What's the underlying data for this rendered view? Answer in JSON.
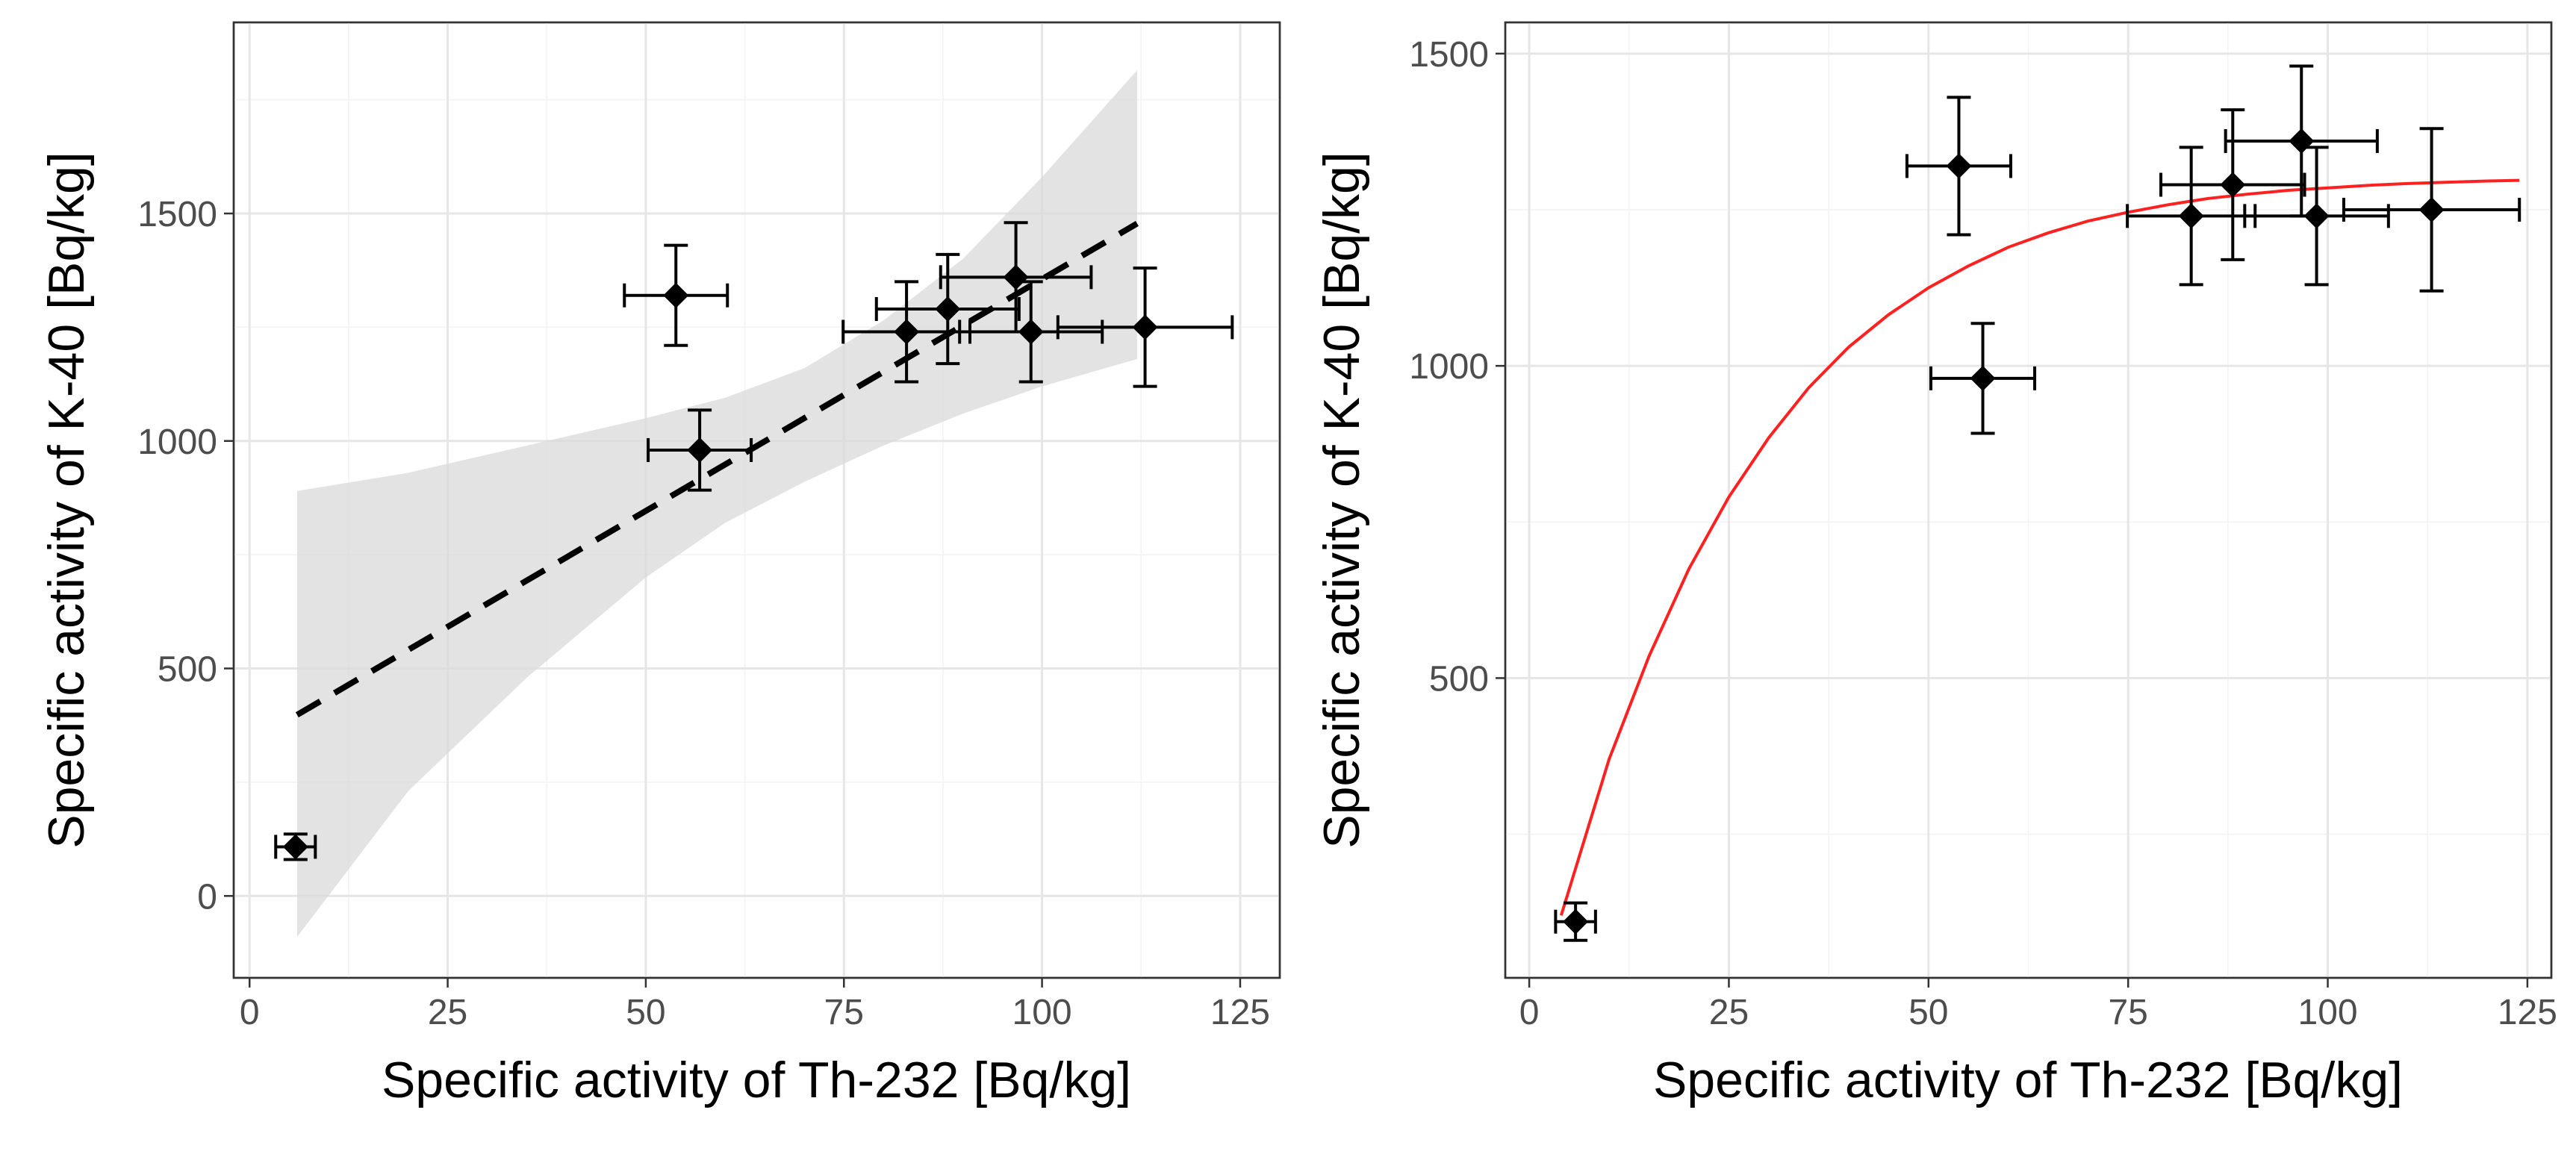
{
  "chart_data": [
    {
      "type": "scatter",
      "xlabel": "Specific activity of Th-232 [Bq/kg]",
      "ylabel": "Specific activity of K-40 [Bq/kg]",
      "xlim": [
        -2,
        130
      ],
      "ylim": [
        -180,
        1920
      ],
      "x_ticks": [
        0,
        25,
        50,
        75,
        100,
        125
      ],
      "y_ticks": [
        0,
        500,
        1000,
        1500
      ],
      "grid": true,
      "legend": "none",
      "colors": {
        "points": "#000000",
        "trend": "#000000",
        "band": "#d9d9d9"
      },
      "points": [
        {
          "x": 5.8,
          "y": 108,
          "xerr": 2.5,
          "yerr": 28
        },
        {
          "x": 53.8,
          "y": 1320,
          "xerr": 6.5,
          "yerr": 110
        },
        {
          "x": 56.8,
          "y": 980,
          "xerr": 6.5,
          "yerr": 88
        },
        {
          "x": 82.9,
          "y": 1240,
          "xerr": 8.0,
          "yerr": 110
        },
        {
          "x": 88.1,
          "y": 1290,
          "xerr": 9.0,
          "yerr": 120
        },
        {
          "x": 96.7,
          "y": 1360,
          "xerr": 9.5,
          "yerr": 120
        },
        {
          "x": 98.6,
          "y": 1240,
          "xerr": 9.0,
          "yerr": 110
        },
        {
          "x": 113.0,
          "y": 1250,
          "xerr": 11.0,
          "yerr": 130
        }
      ],
      "trend": {
        "type": "linear",
        "style": "dashed",
        "x": [
          6,
          112
        ],
        "y": [
          398,
          1478
        ]
      },
      "confidence_band": {
        "x": [
          6,
          20,
          35,
          50,
          60,
          70,
          80,
          90,
          100,
          112
        ],
        "lower": [
          -90,
          230,
          480,
          700,
          820,
          910,
          990,
          1060,
          1120,
          1180
        ],
        "upper": [
          890,
          930,
          990,
          1050,
          1095,
          1160,
          1265,
          1400,
          1580,
          1815
        ]
      }
    },
    {
      "type": "scatter",
      "xlabel": "Specific activity of Th-232 [Bq/kg]",
      "ylabel": "Specific activity of K-40 [Bq/kg]",
      "xlim": [
        -3,
        128
      ],
      "ylim": [
        20,
        1550
      ],
      "x_ticks": [
        0,
        25,
        50,
        75,
        100,
        125
      ],
      "y_ticks": [
        500,
        1000,
        1500
      ],
      "grid": true,
      "legend": "none",
      "colors": {
        "points": "#000000",
        "curve": "#ff2020"
      },
      "points": [
        {
          "x": 5.8,
          "y": 110,
          "xerr": 2.5,
          "yerr": 30
        },
        {
          "x": 53.8,
          "y": 1320,
          "xerr": 6.5,
          "yerr": 110
        },
        {
          "x": 56.8,
          "y": 980,
          "xerr": 6.5,
          "yerr": 88
        },
        {
          "x": 82.9,
          "y": 1240,
          "xerr": 8.0,
          "yerr": 110
        },
        {
          "x": 88.1,
          "y": 1290,
          "xerr": 9.0,
          "yerr": 120
        },
        {
          "x": 96.7,
          "y": 1360,
          "xerr": 9.5,
          "yerr": 120
        },
        {
          "x": 98.6,
          "y": 1240,
          "xerr": 9.0,
          "yerr": 110
        },
        {
          "x": 113.0,
          "y": 1250,
          "xerr": 11.0,
          "yerr": 130
        }
      ],
      "curve": {
        "type": "line",
        "x": [
          4,
          10,
          15,
          20,
          25,
          30,
          35,
          40,
          45,
          50,
          55,
          60,
          65,
          70,
          75,
          80,
          85,
          90,
          95,
          100,
          105,
          110,
          115,
          120,
          124
        ],
        "y": [
          120,
          370,
          535,
          675,
          790,
          885,
          965,
          1030,
          1082,
          1125,
          1160,
          1190,
          1213,
          1232,
          1246,
          1258,
          1268,
          1275,
          1281,
          1285,
          1289,
          1292,
          1294,
          1296,
          1297
        ]
      }
    }
  ]
}
